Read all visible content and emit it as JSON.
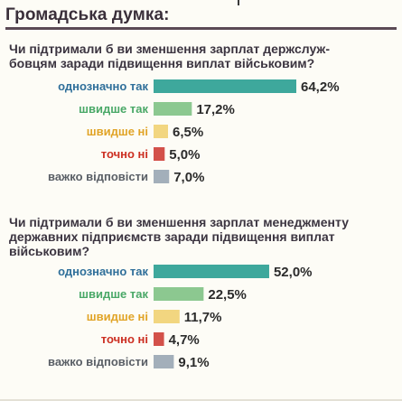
{
  "header": {
    "title": "Громадська думка:"
  },
  "questions": [
    {
      "lines": [
        "Чи підтримали б ви зменшення зарплат держслуж-",
        "бовцям заради підвищення виплат військовим?"
      ]
    },
    {
      "lines": [
        "Чи підтримали б ви зменшення зарплат менеджменту",
        "державних підприємств заради підвищення виплат",
        "військовим?"
      ]
    }
  ],
  "chart_data": [
    {
      "type": "bar",
      "orientation": "horizontal",
      "categories": [
        "однозначно так",
        "швидше так",
        "швидше ні",
        "точно ні",
        "важко відповісти"
      ],
      "values": [
        64.2,
        17.2,
        6.5,
        5.0,
        7.0
      ],
      "value_labels": [
        "64,2%",
        "17,2%",
        "6,5%",
        "5,0%",
        "7,0%"
      ],
      "colors": [
        "#3ea89c",
        "#8cc890",
        "#f2d680",
        "#d3514a",
        "#a3afba"
      ],
      "label_colors": [
        "#2f6f9a",
        "#49a867",
        "#e1a427",
        "#cc2f22",
        "#5a5f66"
      ],
      "unit": "%",
      "xlim": [
        0,
        64.2
      ]
    },
    {
      "type": "bar",
      "orientation": "horizontal",
      "categories": [
        "однозначно так",
        "швидше так",
        "швидше ні",
        "точно ні",
        "важко відповісти"
      ],
      "values": [
        52.0,
        22.5,
        11.7,
        4.7,
        9.1
      ],
      "value_labels": [
        "52,0%",
        "22,5%",
        "11,7%",
        "4,7%",
        "9,1%"
      ],
      "colors": [
        "#3ea89c",
        "#8cc890",
        "#f2d680",
        "#d3514a",
        "#a3afba"
      ],
      "label_colors": [
        "#2f6f9a",
        "#49a867",
        "#e1a427",
        "#cc2f22",
        "#5a5f66"
      ],
      "unit": "%",
      "xlim": [
        0,
        64.2
      ]
    }
  ]
}
